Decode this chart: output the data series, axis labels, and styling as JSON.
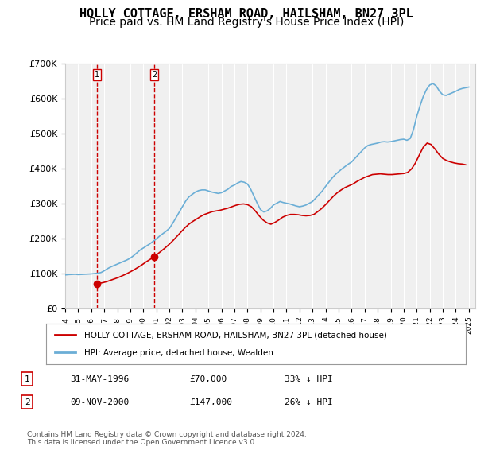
{
  "title": "HOLLY COTTAGE, ERSHAM ROAD, HAILSHAM, BN27 3PL",
  "subtitle": "Price paid vs. HM Land Registry's House Price Index (HPI)",
  "ylabel": "",
  "xlim": [
    1994.0,
    2025.5
  ],
  "ylim": [
    0,
    700000
  ],
  "yticks": [
    0,
    100000,
    200000,
    300000,
    400000,
    500000,
    600000,
    700000
  ],
  "ytick_labels": [
    "£0",
    "£100K",
    "£200K",
    "£300K",
    "£400K",
    "£500K",
    "£600K",
    "£700K"
  ],
  "transactions": [
    {
      "year": 1996.42,
      "price": 70000,
      "label": "1",
      "date": "31-MAY-1996",
      "pct": "33% ↓ HPI"
    },
    {
      "year": 2000.86,
      "price": 147000,
      "label": "2",
      "date": "09-NOV-2000",
      "pct": "26% ↓ HPI"
    }
  ],
  "hpi_color": "#6baed6",
  "price_color": "#cc0000",
  "marker_color": "#cc0000",
  "vline_color": "#cc0000",
  "background_color": "#ffffff",
  "plot_bg_color": "#f0f0f0",
  "grid_color": "#ffffff",
  "legend_line1": "HOLLY COTTAGE, ERSHAM ROAD, HAILSHAM, BN27 3PL (detached house)",
  "legend_line2": "HPI: Average price, detached house, Wealden",
  "footnote": "Contains HM Land Registry data © Crown copyright and database right 2024.\nThis data is licensed under the Open Government Licence v3.0.",
  "title_fontsize": 11,
  "subtitle_fontsize": 10,
  "axis_fontsize": 8,
  "hpi_data_x": [
    1994.0,
    1994.25,
    1994.5,
    1994.75,
    1995.0,
    1995.25,
    1995.5,
    1995.75,
    1996.0,
    1996.25,
    1996.5,
    1996.75,
    1997.0,
    1997.25,
    1997.5,
    1997.75,
    1998.0,
    1998.25,
    1998.5,
    1998.75,
    1999.0,
    1999.25,
    1999.5,
    1999.75,
    2000.0,
    2000.25,
    2000.5,
    2000.75,
    2001.0,
    2001.25,
    2001.5,
    2001.75,
    2002.0,
    2002.25,
    2002.5,
    2002.75,
    2003.0,
    2003.25,
    2003.5,
    2003.75,
    2004.0,
    2004.25,
    2004.5,
    2004.75,
    2005.0,
    2005.25,
    2005.5,
    2005.75,
    2006.0,
    2006.25,
    2006.5,
    2006.75,
    2007.0,
    2007.25,
    2007.5,
    2007.75,
    2008.0,
    2008.25,
    2008.5,
    2008.75,
    2009.0,
    2009.25,
    2009.5,
    2009.75,
    2010.0,
    2010.25,
    2010.5,
    2010.75,
    2011.0,
    2011.25,
    2011.5,
    2011.75,
    2012.0,
    2012.25,
    2012.5,
    2012.75,
    2013.0,
    2013.25,
    2013.5,
    2013.75,
    2014.0,
    2014.25,
    2014.5,
    2014.75,
    2015.0,
    2015.25,
    2015.5,
    2015.75,
    2016.0,
    2016.25,
    2016.5,
    2016.75,
    2017.0,
    2017.25,
    2017.5,
    2017.75,
    2018.0,
    2018.25,
    2018.5,
    2018.75,
    2019.0,
    2019.25,
    2019.5,
    2019.75,
    2020.0,
    2020.25,
    2020.5,
    2020.75,
    2021.0,
    2021.25,
    2021.5,
    2021.75,
    2022.0,
    2022.25,
    2022.5,
    2022.75,
    2023.0,
    2023.25,
    2023.5,
    2023.75,
    2024.0,
    2024.25,
    2024.5,
    2024.75,
    2025.0
  ],
  "hpi_data_y": [
    95000,
    96000,
    96500,
    97000,
    96000,
    96500,
    97000,
    97500,
    98000,
    99000,
    100000,
    102000,
    107000,
    113000,
    118000,
    122000,
    126000,
    130000,
    134000,
    138000,
    143000,
    150000,
    158000,
    166000,
    172000,
    178000,
    184000,
    191000,
    198000,
    206000,
    213000,
    220000,
    228000,
    242000,
    258000,
    274000,
    290000,
    306000,
    318000,
    325000,
    332000,
    336000,
    338000,
    338000,
    335000,
    332000,
    330000,
    328000,
    330000,
    335000,
    340000,
    348000,
    352000,
    358000,
    362000,
    360000,
    355000,
    340000,
    320000,
    300000,
    282000,
    275000,
    278000,
    285000,
    295000,
    300000,
    305000,
    302000,
    300000,
    298000,
    295000,
    292000,
    290000,
    292000,
    295000,
    300000,
    305000,
    315000,
    325000,
    335000,
    348000,
    360000,
    372000,
    382000,
    390000,
    398000,
    405000,
    412000,
    418000,
    428000,
    438000,
    448000,
    458000,
    465000,
    468000,
    470000,
    472000,
    475000,
    476000,
    475000,
    476000,
    478000,
    480000,
    482000,
    483000,
    480000,
    485000,
    510000,
    548000,
    578000,
    605000,
    625000,
    638000,
    642000,
    635000,
    620000,
    610000,
    608000,
    612000,
    616000,
    620000,
    625000,
    628000,
    630000,
    632000
  ],
  "price_data_x": [
    1996.42,
    1996.6,
    1996.9,
    1997.2,
    1997.5,
    1997.8,
    1998.1,
    1998.4,
    1998.7,
    1999.0,
    1999.3,
    1999.6,
    1999.9,
    2000.2,
    2000.5,
    2000.86,
    2001.1,
    2001.4,
    2001.7,
    2002.0,
    2002.3,
    2002.6,
    2002.9,
    2003.2,
    2003.5,
    2003.8,
    2004.1,
    2004.4,
    2004.7,
    2005.0,
    2005.3,
    2005.6,
    2005.9,
    2006.2,
    2006.5,
    2006.8,
    2007.1,
    2007.4,
    2007.7,
    2008.0,
    2008.3,
    2008.6,
    2008.9,
    2009.2,
    2009.5,
    2009.8,
    2010.1,
    2010.4,
    2010.7,
    2011.0,
    2011.3,
    2011.6,
    2011.9,
    2012.2,
    2012.5,
    2012.8,
    2013.1,
    2013.4,
    2013.7,
    2014.0,
    2014.3,
    2014.6,
    2014.9,
    2015.2,
    2015.5,
    2015.8,
    2016.1,
    2016.4,
    2016.7,
    2017.0,
    2017.3,
    2017.6,
    2017.9,
    2018.2,
    2018.5,
    2018.8,
    2019.1,
    2019.4,
    2019.7,
    2020.0,
    2020.3,
    2020.6,
    2020.9,
    2021.2,
    2021.5,
    2021.8,
    2022.1,
    2022.4,
    2022.7,
    2023.0,
    2023.3,
    2023.6,
    2023.9,
    2024.2,
    2024.5,
    2024.75
  ],
  "price_data_y": [
    70000,
    71000,
    73000,
    76000,
    80000,
    84000,
    88000,
    93000,
    98000,
    104000,
    110000,
    117000,
    124000,
    132000,
    139000,
    147000,
    155000,
    164000,
    173000,
    183000,
    194000,
    206000,
    218000,
    230000,
    240000,
    248000,
    255000,
    262000,
    268000,
    272000,
    276000,
    278000,
    280000,
    283000,
    286000,
    290000,
    294000,
    297000,
    298000,
    296000,
    290000,
    278000,
    264000,
    252000,
    244000,
    240000,
    245000,
    252000,
    260000,
    265000,
    268000,
    268000,
    267000,
    265000,
    264000,
    265000,
    268000,
    276000,
    285000,
    296000,
    308000,
    320000,
    330000,
    338000,
    345000,
    350000,
    355000,
    362000,
    368000,
    374000,
    378000,
    382000,
    383000,
    384000,
    383000,
    382000,
    382000,
    383000,
    384000,
    385000,
    388000,
    398000,
    415000,
    438000,
    460000,
    472000,
    468000,
    455000,
    440000,
    428000,
    422000,
    418000,
    415000,
    413000,
    412000,
    410000
  ]
}
